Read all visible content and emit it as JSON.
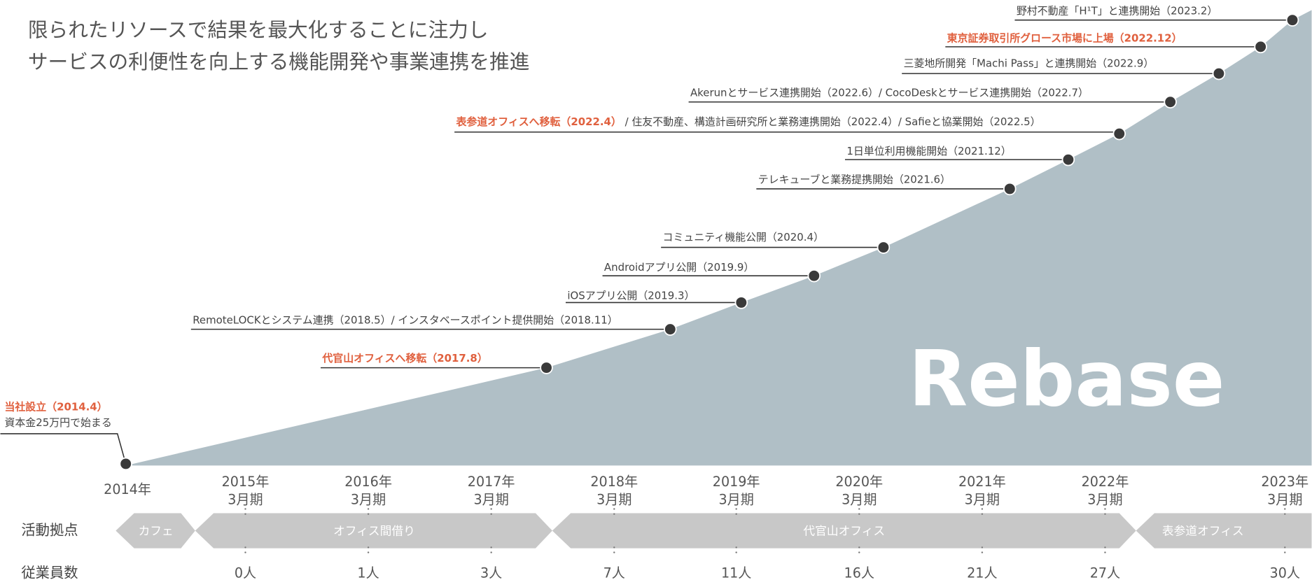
{
  "headline": [
    "限られたリソースで結果を最大化することに注力し",
    "サービスの利便性を向上する機能開発や事業連携を推進"
  ],
  "brand": "Rebase",
  "events": [
    {
      "segments": [
        {
          "text": "野村不動産「H¹T」と連携開始（2023.2）",
          "emphasis": false
        }
      ]
    },
    {
      "segments": [
        {
          "text": "東京証券取引所グロース市場に上場（2022.12）",
          "emphasis": true
        }
      ]
    },
    {
      "segments": [
        {
          "text": "三菱地所開発「Machi Pass」と連携開始（2022.9）",
          "emphasis": false
        }
      ]
    },
    {
      "segments": [
        {
          "text": "Akerunとサービス連携開始（2022.6）/ CocoDeskとサービス連携開始（2022.7）",
          "emphasis": false
        }
      ]
    },
    {
      "segments": [
        {
          "text": "表参道オフィスへ移転（2022.4）",
          "emphasis": true
        },
        {
          "text": " / 住友不動産、構造計画研究所と業務連携開始（2022.4）/ Safieと協業開始（2022.5）",
          "emphasis": false
        }
      ]
    },
    {
      "segments": [
        {
          "text": "1日単位利用機能開始（2021.12）",
          "emphasis": false
        }
      ]
    },
    {
      "segments": [
        {
          "text": "テレキューブと業務提携開始（2021.6）",
          "emphasis": false
        }
      ]
    },
    {
      "segments": [
        {
          "text": "コミュニティ機能公開（2020.4）",
          "emphasis": false
        }
      ]
    },
    {
      "segments": [
        {
          "text": "Androidアプリ公開（2019.9）",
          "emphasis": false
        }
      ]
    },
    {
      "segments": [
        {
          "text": "iOSアプリ公開（2019.3）",
          "emphasis": false
        }
      ]
    },
    {
      "segments": [
        {
          "text": "RemoteLOCKとシステム連携（2018.5）/ インスタベースポイント提供開始（2018.11）",
          "emphasis": false
        }
      ]
    },
    {
      "segments": [
        {
          "text": "代官山オフィスへ移転（2017.8）",
          "emphasis": true
        }
      ]
    },
    {
      "segments": [
        {
          "text": "当社設立（2014.4）",
          "emphasis": true
        }
      ],
      "note": "資本金25万円で始まる"
    }
  ],
  "periods": [
    {
      "year": "2014年"
    },
    {
      "year": "2015年",
      "sub": "3月期"
    },
    {
      "year": "2016年",
      "sub": "3月期"
    },
    {
      "year": "2017年",
      "sub": "3月期"
    },
    {
      "year": "2018年",
      "sub": "3月期"
    },
    {
      "year": "2019年",
      "sub": "3月期"
    },
    {
      "year": "2020年",
      "sub": "3月期"
    },
    {
      "year": "2021年",
      "sub": "3月期"
    },
    {
      "year": "2022年",
      "sub": "3月期"
    },
    {
      "year": "2023年",
      "sub": "3月期"
    }
  ],
  "rows": {
    "sites": "活動拠点",
    "employees": "従業員数"
  },
  "sites": [
    "カフェ",
    "オフィス間借り",
    "代官山オフィス",
    "表参道オフィス"
  ],
  "employees": [
    "0人",
    "1人",
    "3人",
    "7人",
    "11人",
    "16人",
    "21人",
    "27人",
    "30人"
  ]
}
